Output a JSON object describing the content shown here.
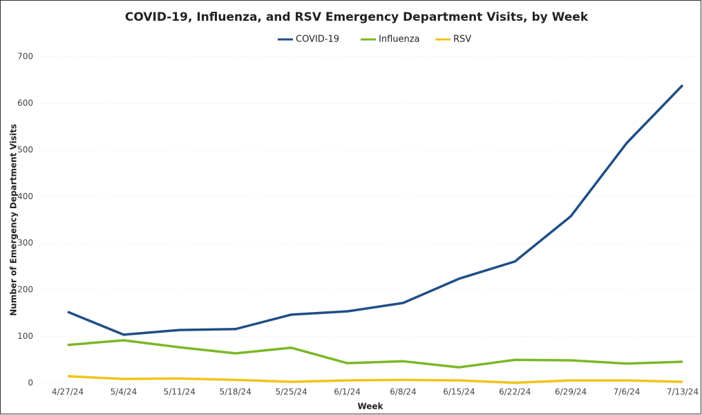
{
  "chart_data": {
    "type": "line",
    "title": "COVID-19, Influenza, and RSV Emergency Department Visits, by Week",
    "x_label": "Week",
    "y_label": "Number of Emergency Department Visits",
    "categories": [
      "4/27/24",
      "5/4/24",
      "5/11/24",
      "5/18/24",
      "5/25/24",
      "6/1/24",
      "6/8/24",
      "6/15/24",
      "6/22/24",
      "6/29/24",
      "7/6/24",
      "7/13/24"
    ],
    "series": [
      {
        "name": "COVID-19",
        "color": "#1f4e85",
        "values": [
          153,
          104,
          114,
          116,
          147,
          154,
          172,
          224,
          261,
          358,
          515,
          639
        ]
      },
      {
        "name": "Influenza",
        "color": "#7ab827",
        "values": [
          82,
          92,
          77,
          64,
          76,
          43,
          47,
          34,
          50,
          49,
          42,
          46
        ]
      },
      {
        "name": "RSV",
        "color": "#f0c419",
        "values": [
          15,
          9,
          10,
          7,
          3,
          6,
          7,
          6,
          1,
          6,
          6,
          3
        ]
      }
    ],
    "ylim": [
      0,
      700
    ],
    "yticks": [
      0,
      100,
      200,
      300,
      400,
      500,
      600,
      700
    ],
    "grid": true,
    "legend": "top"
  }
}
